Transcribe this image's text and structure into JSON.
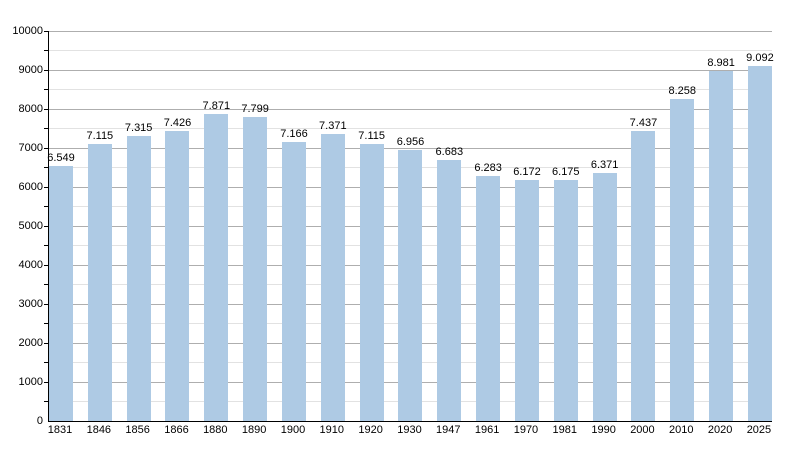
{
  "chart_data": {
    "type": "bar",
    "title": "",
    "xlabel": "",
    "ylabel": "",
    "categories": [
      "1831",
      "1846",
      "1856",
      "1866",
      "1880",
      "1890",
      "1900",
      "1910",
      "1920",
      "1930",
      "1947",
      "1961",
      "1970",
      "1981",
      "1990",
      "2000",
      "2010",
      "2020",
      "2025"
    ],
    "values": [
      6549,
      7115,
      7315,
      7426,
      7871,
      7799,
      7166,
      7371,
      7115,
      6956,
      6683,
      6283,
      6172,
      6175,
      6371,
      7437,
      8258,
      8981,
      9092
    ],
    "value_labels": [
      "6.549",
      "7.115",
      "7.315",
      "7.426",
      "7.871",
      "7.799",
      "7.166",
      "7.371",
      "7.115",
      "6.956",
      "6.683",
      "6.283",
      "6.172",
      "6.175",
      "6.371",
      "7.437",
      "8.258",
      "8.981",
      "9.092"
    ],
    "ylim": [
      0,
      10000
    ],
    "y_major_step": 1000,
    "y_minor_step": 500,
    "y_tick_labels": [
      "0",
      "1000",
      "2000",
      "3000",
      "4000",
      "5000",
      "6000",
      "7000",
      "8000",
      "9000",
      "10000"
    ],
    "grid": true,
    "legend": "none",
    "colors": {
      "bar_fill": "#aecae4",
      "major_gridline": "#aeaeae",
      "minor_gridline": "#e2e2e2",
      "axis": "#000000",
      "label_text": "#000000",
      "background": "#ffffff"
    }
  }
}
